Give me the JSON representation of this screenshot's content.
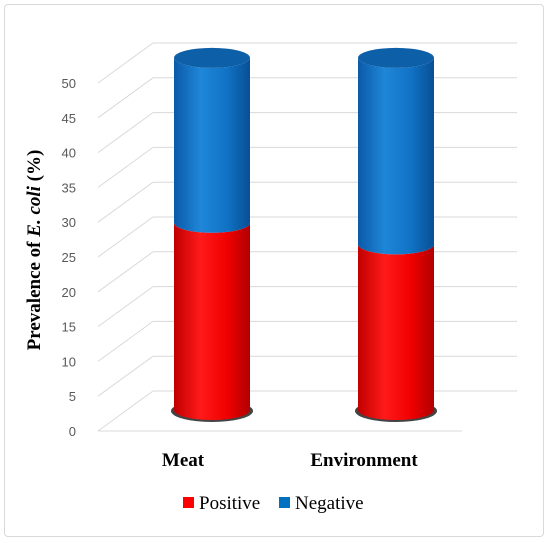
{
  "chart_data": {
    "type": "bar",
    "subtype": "stacked-3d-cylinder",
    "categories": [
      "Meat",
      "Environment"
    ],
    "series": [
      {
        "name": "Positive",
        "values": [
          26.9,
          23.8
        ],
        "color": "#ff0000"
      },
      {
        "name": "Negative",
        "values": [
          23.7,
          26.8
        ],
        "color": "#0070c0"
      }
    ],
    "ylabel": {
      "prefix": "Prevalence of ",
      "italic": "E. coli",
      "suffix": " (%)"
    },
    "ylim": [
      0,
      50
    ],
    "yticks": [
      0,
      5,
      10,
      15,
      20,
      25,
      30,
      35,
      40,
      45,
      50
    ],
    "grid": true,
    "legend_position": "bottom"
  }
}
